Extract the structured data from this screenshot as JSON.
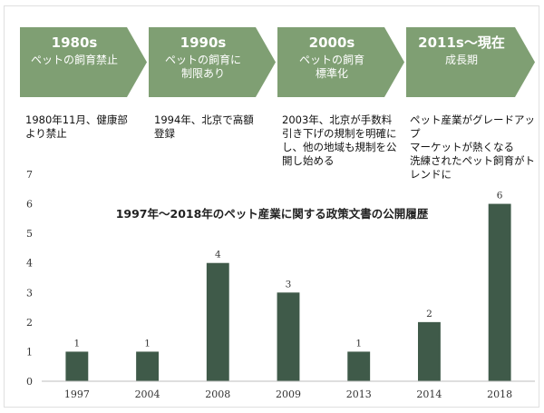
{
  "phases": [
    {
      "period": "1980s",
      "policy": "ペットの飼育禁止",
      "note": "1980年11月、健康部\nより禁止"
    },
    {
      "period": "1990s",
      "policy": "ペットの飼育に\n制限あり",
      "note": "1994年、北京で高額\n登録"
    },
    {
      "period": "2000s",
      "policy": "ペットの飼育\n標準化",
      "note": "2003年、北京が手数料\n引き下げの規制を明確に\nし、他の地域も規制を公\n開し始める"
    },
    {
      "period": "2011s〜現在",
      "policy": "成長期",
      "note": "ペット産業がグレードアップ\nマーケットが熱くなる\n洗練されたペット飼育がト\nレンドに"
    }
  ],
  "colors": {
    "phase_fill": "#7f9f73",
    "bar_fill": "#3f5a49"
  },
  "chart_data": {
    "type": "bar",
    "title": "1997年〜2018年のペット産業に関する政策文書の公開履歴",
    "categories": [
      "1997",
      "2004",
      "2008",
      "2009",
      "2013",
      "2014",
      "2018"
    ],
    "values": [
      1,
      1,
      4,
      3,
      1,
      2,
      6
    ],
    "ylim": [
      0,
      7
    ],
    "yticks": [
      0,
      1,
      2,
      3,
      4,
      5,
      6,
      7
    ],
    "grid": false,
    "data_labels": true
  }
}
